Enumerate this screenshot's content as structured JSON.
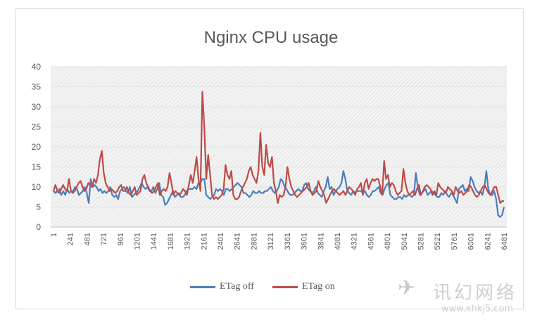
{
  "chart_data": {
    "type": "line",
    "title": "Nginx CPU usage",
    "xlabel": "",
    "ylabel": "",
    "ylim": [
      0,
      40
    ],
    "yticks": [
      "0",
      "5",
      "10",
      "15",
      "20",
      "25",
      "30",
      "35",
      "40"
    ],
    "x_tick_labels": [
      "1",
      "241",
      "481",
      "721",
      "961",
      "1201",
      "1441",
      "1681",
      "1921",
      "2161",
      "2401",
      "2641",
      "2881",
      "3121",
      "3361",
      "3601",
      "3841",
      "4081",
      "4321",
      "4561",
      "4801",
      "5041",
      "5281",
      "5521",
      "5761",
      "6001",
      "6241",
      "6481"
    ],
    "x_start": 1,
    "x_end": 6481,
    "grid": true,
    "legend_position": "bottom",
    "series": [
      {
        "name": "ETag off",
        "color": "#4a7ebb",
        "values": [
          9,
          8.5,
          9,
          9.5,
          8,
          9,
          8,
          9.5,
          8.5,
          9,
          9,
          10,
          9.5,
          8,
          8.5,
          9,
          10,
          8.5,
          6,
          12,
          10,
          10.5,
          10,
          9,
          9.5,
          8.5,
          9,
          8.5,
          9,
          10,
          8,
          7.5,
          8,
          7,
          9,
          9.5,
          10,
          9,
          8.5,
          10,
          7.5,
          8,
          8.5,
          9,
          10,
          11,
          10,
          9.5,
          10,
          9,
          9,
          10,
          8.5,
          9.5,
          11,
          8,
          7.5,
          5.5,
          6,
          7,
          8,
          9,
          7.5,
          8,
          8.5,
          7.5,
          7.5,
          8,
          9,
          9.5,
          9.5,
          9.5,
          10,
          9.5,
          11,
          11,
          12,
          12,
          8,
          7.5,
          7,
          7.5,
          8,
          9.5,
          9,
          9.5,
          9,
          8,
          9.5,
          9.5,
          9,
          9.5,
          10,
          10.5,
          11,
          10.5,
          10,
          8.5,
          8.5,
          8,
          7.5,
          8,
          9,
          8.5,
          8.5,
          9,
          8.5,
          8.5,
          9,
          9,
          9.5,
          10,
          9,
          8.5,
          9,
          10,
          12,
          11.5,
          10,
          9.5,
          8.5,
          8,
          8,
          8.5,
          9,
          9.5,
          9,
          9,
          10.5,
          11,
          9.5,
          9,
          8.5,
          9,
          10,
          8.5,
          8,
          7.5,
          9,
          10,
          12.5,
          9.5,
          10,
          8,
          9,
          9.5,
          10,
          11,
          14,
          12,
          9,
          8.5,
          8,
          9,
          8.5,
          9,
          9,
          9,
          8.5,
          9,
          8,
          7.5,
          8,
          9,
          9,
          9.5,
          10,
          8.5,
          8,
          9.5,
          10.5,
          11,
          8,
          7.5,
          7,
          7,
          7.5,
          7.5,
          7,
          8,
          7.5,
          8,
          8,
          7.5,
          8,
          13.5,
          10,
          8,
          8.5,
          9,
          9.5,
          8,
          8.5,
          9,
          8.5,
          8,
          7.5,
          7.5,
          8.5,
          8,
          9,
          8,
          7.5,
          8.5,
          8,
          7,
          6,
          9.5,
          10,
          10.5,
          9,
          9.5,
          9,
          12.5,
          11.5,
          10,
          9,
          8.5,
          9,
          8,
          10,
          14,
          9.5,
          8,
          8,
          9,
          7,
          3,
          2.5,
          3,
          5
        ]
      },
      {
        "name": "ETag on",
        "color": "#be4b48",
        "values": [
          9,
          10.5,
          9,
          8.5,
          9.5,
          10.5,
          9.5,
          9,
          12,
          9,
          8.5,
          9,
          10,
          11,
          11.5,
          10,
          9,
          9.5,
          11,
          10.5,
          10,
          12,
          11,
          13,
          17,
          19,
          13.5,
          11,
          10,
          9,
          9.5,
          9,
          8.5,
          9,
          10,
          10.5,
          9,
          9,
          10,
          8.5,
          8,
          9,
          10,
          8,
          8.5,
          9,
          12,
          13,
          11,
          10,
          9,
          8.5,
          9,
          10,
          11,
          8,
          9,
          9.5,
          9,
          10,
          13.5,
          11,
          8,
          9,
          8.5,
          8,
          8.5,
          9.5,
          9,
          8,
          10.5,
          13,
          11,
          14,
          17.5,
          12,
          9,
          33.8,
          25,
          12,
          18,
          13,
          8,
          7,
          7.5,
          7,
          7.5,
          8,
          9.5,
          15.5,
          13,
          12,
          14,
          8,
          7,
          7,
          7.5,
          9,
          10,
          11,
          12,
          14,
          15,
          13,
          12,
          11,
          14,
          23.5,
          15,
          13,
          20.5,
          16,
          15,
          17.5,
          11,
          9,
          6,
          8,
          7.5,
          8,
          10,
          15,
          12,
          10,
          9,
          8,
          7.5,
          8,
          8.5,
          9,
          9.5,
          10,
          11,
          9,
          8,
          8.5,
          9,
          11.5,
          10,
          9,
          8,
          6,
          7,
          8,
          9,
          9.5,
          9,
          8.5,
          8,
          8.5,
          9,
          8,
          9,
          10,
          9.5,
          9,
          8,
          9.5,
          10,
          11,
          8,
          11,
          12,
          9.5,
          11,
          12,
          11.5,
          12,
          12,
          10,
          8,
          16.5,
          12,
          13,
          10,
          11,
          10.5,
          9,
          8,
          8.5,
          9,
          14.5,
          11,
          9,
          8,
          8.5,
          9,
          8,
          9.5,
          10.5,
          8,
          9,
          10,
          10.5,
          10,
          9.5,
          8,
          9,
          8,
          11,
          10,
          9.5,
          9,
          8.5,
          10,
          9.5,
          9,
          8,
          10,
          9,
          8.5,
          9,
          8,
          8.5,
          9,
          10.5,
          10,
          9,
          8,
          7.5,
          8,
          9,
          10,
          10.5,
          9.5,
          8.5,
          8,
          9,
          10,
          10,
          8,
          6,
          6.5,
          6.5
        ]
      }
    ]
  },
  "legend": {
    "items": [
      {
        "label": "ETag off",
        "color": "#4a7ebb"
      },
      {
        "label": "ETag on",
        "color": "#be4b48"
      }
    ]
  },
  "watermark": {
    "logo_glyph": "✈",
    "text": "讯幻网络",
    "url": "www.xhkj5.com"
  }
}
